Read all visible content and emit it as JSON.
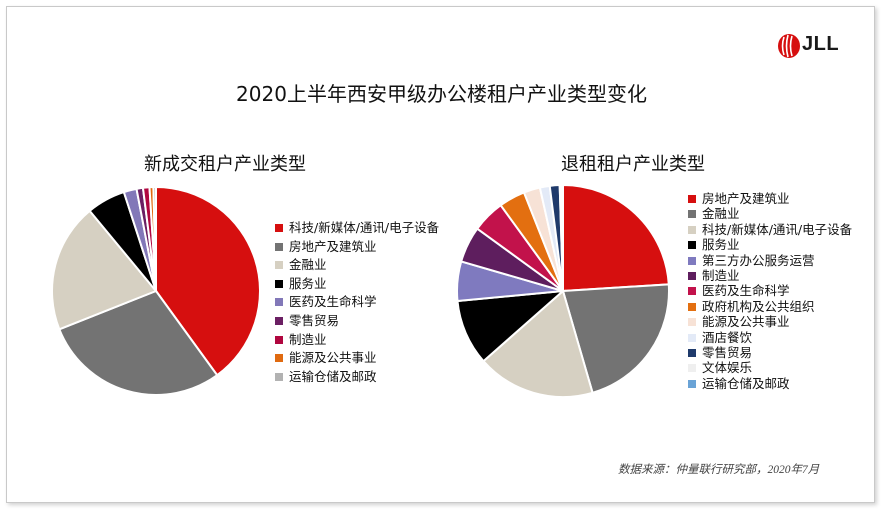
{
  "title": "2020上半年西安甲级办公楼租户产业类型变化",
  "logo_text": "JLL",
  "source": "数据来源：仲量联行研究部，2020年7月",
  "chart_data": [
    {
      "type": "pie",
      "title": "新成交租户产业类型",
      "legend_position": "right",
      "categories": [
        "科技/新媒体/通讯/电子设备",
        "房地产及建筑业",
        "金融业",
        "服务业",
        "医药及生命科学",
        "零售贸易",
        "制造业",
        "能源及公共事业",
        "运输仓储及邮政"
      ],
      "values": [
        40,
        29,
        20,
        6,
        2,
        1,
        1,
        0.6,
        0.4
      ],
      "colors": [
        "#d60f0f",
        "#737373",
        "#d6d0c2",
        "#000000",
        "#8278b8",
        "#6b1f63",
        "#b0063f",
        "#e06a10",
        "#b2b2b2"
      ]
    },
    {
      "type": "pie",
      "title": "退租租户产业类型",
      "legend_position": "right",
      "categories": [
        "房地产及建筑业",
        "金融业",
        "科技/新媒体/通讯/电子设备",
        "服务业",
        "第三方办公服务运营",
        "制造业",
        "医药及生命科学",
        "政府机构及公共组织",
        "能源及公共事业",
        "酒店餐饮",
        "零售贸易",
        "文体娱乐",
        "运输仓储及邮政"
      ],
      "values": [
        24,
        21.5,
        18,
        10,
        6,
        5.5,
        5,
        4,
        2.5,
        1.5,
        1.5,
        0.3,
        0.2
      ],
      "colors": [
        "#d60f0f",
        "#737373",
        "#d6d0c2",
        "#000000",
        "#7f7abf",
        "#5e1e5e",
        "#c2124b",
        "#e36f10",
        "#f7e2d6",
        "#e3eaf7",
        "#1f3a6b",
        "#efefef",
        "#6aa3d6"
      ]
    }
  ]
}
